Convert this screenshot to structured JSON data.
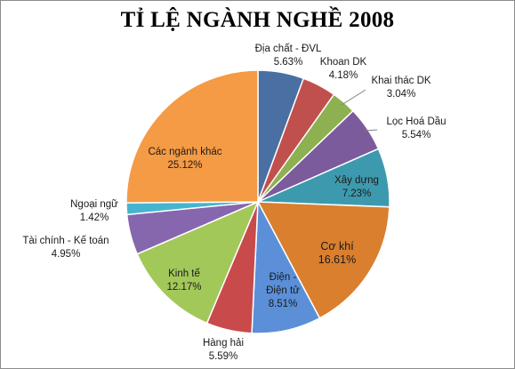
{
  "chart_data": {
    "type": "pie",
    "title": "TỈ LỆ NGÀNH NGHỀ 2008",
    "slices": [
      {
        "name": "Địa chất - ĐVL",
        "value_label": "5.63%",
        "value": 5.63,
        "color": "#4a6fa2"
      },
      {
        "name": "Khoan DK",
        "value_label": "4.18%",
        "value": 4.18,
        "color": "#c0504d"
      },
      {
        "name": "Khai thác DK",
        "value_label": "3.04%",
        "value": 3.04,
        "color": "#8db050"
      },
      {
        "name": "Lọc Hoá Dầu",
        "value_label": "5.54%",
        "value": 5.54,
        "color": "#7b5b9c"
      },
      {
        "name": "Xây dựng",
        "value_label": "7.23%",
        "value": 7.23,
        "color": "#3d9aae"
      },
      {
        "name": "Cơ khí",
        "value_label": "16.61%",
        "value": 16.61,
        "color": "#d97f2e"
      },
      {
        "name": "Điện - Điện tử",
        "value_label": "8.51%",
        "value": 8.51,
        "color": "#5b8fd8"
      },
      {
        "name": "Hàng hải",
        "value_label": "5.59%",
        "value": 5.59,
        "color": "#c94a4a"
      },
      {
        "name": "Kinh tế",
        "value_label": "12.17%",
        "value": 12.17,
        "color": "#a3c85a"
      },
      {
        "name": "Tài chính - Kế toán",
        "value_label": "4.95%",
        "value": 4.95,
        "color": "#8667ad"
      },
      {
        "name": "Ngoại ngữ",
        "value_label": "1.42%",
        "value": 1.42,
        "color": "#46b4cf"
      },
      {
        "name": "Các ngành khác",
        "value_label": "25.12%",
        "value": 25.12,
        "color": "#f59a45"
      }
    ]
  }
}
